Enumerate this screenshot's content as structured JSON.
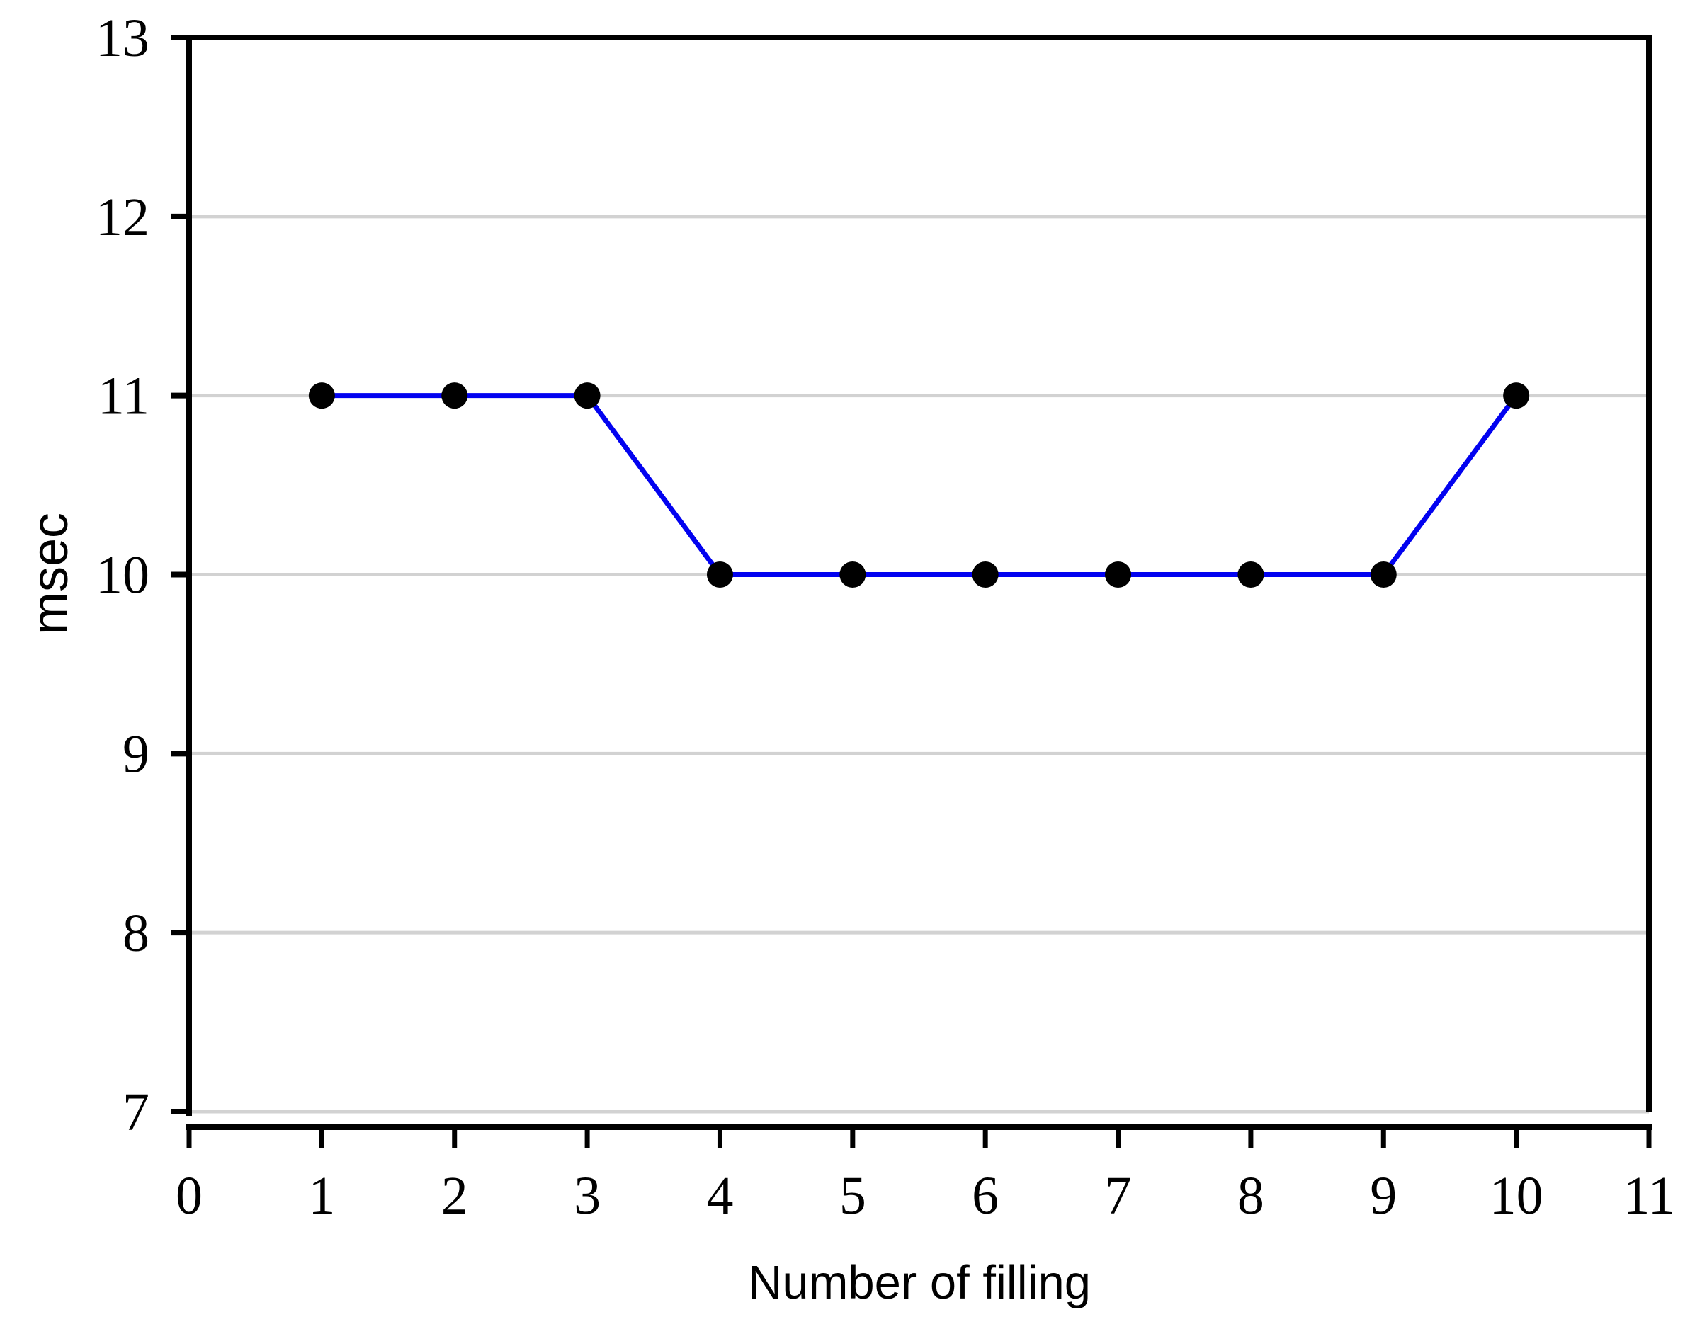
{
  "chart_data": {
    "type": "line",
    "title": "",
    "xlabel": "Number of filling",
    "ylabel": "msec",
    "x": [
      1,
      2,
      3,
      4,
      5,
      6,
      7,
      8,
      9,
      10
    ],
    "y": [
      11,
      11,
      11,
      10,
      10,
      10,
      10,
      10,
      10,
      11
    ],
    "xlim": [
      0,
      11
    ],
    "ylim": [
      7,
      13
    ],
    "xtick_labels": [
      "0",
      "1",
      "2",
      "3",
      "4",
      "5",
      "6",
      "7",
      "8",
      "9",
      "10",
      "11"
    ],
    "ytick_labels": [
      "7",
      "8",
      "9",
      "10",
      "11",
      "12",
      "13"
    ],
    "xticks": [
      0,
      1,
      2,
      3,
      4,
      5,
      6,
      7,
      8,
      9,
      10,
      11
    ],
    "yticks": [
      7,
      8,
      9,
      10,
      11,
      12,
      13
    ],
    "grid": "horizontal-only",
    "legend": "none",
    "marker": "filled-circle",
    "line_color": "#0202f0",
    "marker_color": "#000000",
    "grid_color": "#d2d2d2",
    "axis_color": "#000000",
    "text_color": "#000000",
    "background_color": "#ffffff"
  }
}
